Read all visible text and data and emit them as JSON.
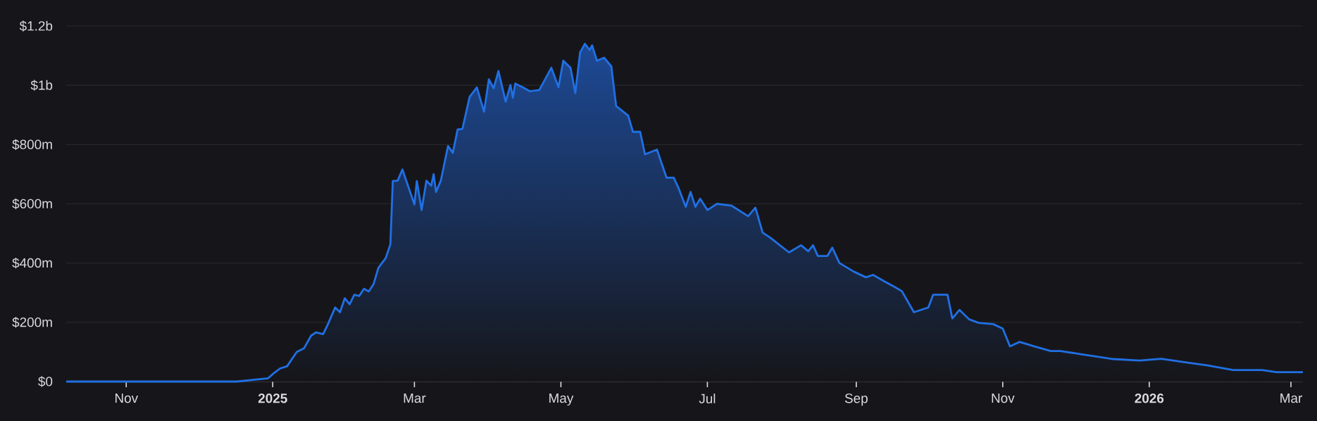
{
  "chart_data": {
    "type": "area",
    "color": "#2170e4",
    "grid": "y",
    "xlim": [
      "2024-10-07",
      "2026-03-06"
    ],
    "xticks": [
      {
        "value": "2024-11-01",
        "label": "Nov"
      },
      {
        "value": "2025-01-01",
        "label": "2025"
      },
      {
        "value": "2025-03-01",
        "label": "Mar"
      },
      {
        "value": "2025-05-01",
        "label": "May"
      },
      {
        "value": "2025-07-01",
        "label": "Jul"
      },
      {
        "value": "2025-09-01",
        "label": "Sep"
      },
      {
        "value": "2025-11-01",
        "label": "Nov"
      },
      {
        "value": "2026-01-01",
        "label": "2026"
      },
      {
        "value": "2026-03-01",
        "label": "Mar"
      }
    ],
    "ylim": [
      0,
      1200000000
    ],
    "yticks": [
      {
        "value": 0,
        "label": "$0"
      },
      {
        "value": 200000000,
        "label": "$200m"
      },
      {
        "value": 400000000,
        "label": "$400m"
      },
      {
        "value": 600000000,
        "label": "$600m"
      },
      {
        "value": 800000000,
        "label": "$800m"
      },
      {
        "value": 1000000000,
        "label": "$1b"
      },
      {
        "value": 1200000000,
        "label": "$1.2b"
      }
    ],
    "x": [
      "2024-10-07",
      "2024-12-17",
      "2024-12-30",
      "2025-01-01",
      "2025-01-04",
      "2025-01-07",
      "2025-01-11",
      "2025-01-14",
      "2025-01-17",
      "2025-01-19",
      "2025-01-22",
      "2025-01-24",
      "2025-01-27",
      "2025-01-29",
      "2025-01-31",
      "2025-02-02",
      "2025-02-04",
      "2025-02-06",
      "2025-02-08",
      "2025-02-10",
      "2025-02-12",
      "2025-02-14",
      "2025-02-17",
      "2025-02-19",
      "2025-02-20",
      "2025-02-22",
      "2025-02-24",
      "2025-03-01",
      "2025-03-02",
      "2025-03-04",
      "2025-03-06",
      "2025-03-08",
      "2025-03-09",
      "2025-03-10",
      "2025-03-12",
      "2025-03-15",
      "2025-03-17",
      "2025-03-19",
      "2025-03-21",
      "2025-03-24",
      "2025-03-27",
      "2025-03-30",
      "2025-04-01",
      "2025-04-03",
      "2025-04-05",
      "2025-04-08",
      "2025-04-10",
      "2025-04-11",
      "2025-04-12",
      "2025-04-15",
      "2025-04-18",
      "2025-04-22",
      "2025-04-27",
      "2025-04-30",
      "2025-05-02",
      "2025-05-05",
      "2025-05-07",
      "2025-05-09",
      "2025-05-11",
      "2025-05-13",
      "2025-05-14",
      "2025-05-16",
      "2025-05-19",
      "2025-05-22",
      "2025-05-24",
      "2025-05-29",
      "2025-05-31",
      "2025-06-03",
      "2025-06-05",
      "2025-06-10",
      "2025-06-14",
      "2025-06-17",
      "2025-06-19",
      "2025-06-22",
      "2025-06-24",
      "2025-06-26",
      "2025-06-28",
      "2025-07-01",
      "2025-07-05",
      "2025-07-11",
      "2025-07-18",
      "2025-07-21",
      "2025-07-24",
      "2025-07-27",
      "2025-07-30",
      "2025-08-04",
      "2025-08-09",
      "2025-08-12",
      "2025-08-14",
      "2025-08-16",
      "2025-08-20",
      "2025-08-22",
      "2025-08-25",
      "2025-08-31",
      "2025-09-05",
      "2025-09-08",
      "2025-09-13",
      "2025-09-16",
      "2025-09-20",
      "2025-09-25",
      "2025-10-01",
      "2025-10-03",
      "2025-10-09",
      "2025-10-11",
      "2025-10-14",
      "2025-10-18",
      "2025-10-22",
      "2025-10-28",
      "2025-11-01",
      "2025-11-04",
      "2025-11-08",
      "2025-11-14",
      "2025-11-21",
      "2025-11-25",
      "2025-12-04",
      "2025-12-17",
      "2025-12-28",
      "2026-01-06",
      "2026-01-16",
      "2026-01-25",
      "2026-02-05",
      "2026-02-17",
      "2026-02-23",
      "2026-03-06"
    ],
    "values": [
      0,
      0,
      11000000,
      25000000,
      44000000,
      52000000,
      100000000,
      112000000,
      155000000,
      166000000,
      160000000,
      194000000,
      250000000,
      234000000,
      281000000,
      261000000,
      293000000,
      289000000,
      313000000,
      304000000,
      329000000,
      384000000,
      416000000,
      463000000,
      677000000,
      678000000,
      716000000,
      598000000,
      677000000,
      579000000,
      678000000,
      661000000,
      700000000,
      640000000,
      678000000,
      795000000,
      772000000,
      851000000,
      853000000,
      961000000,
      993000000,
      911000000,
      1020000000,
      990000000,
      1048000000,
      945000000,
      1001000000,
      958000000,
      1006000000,
      994000000,
      980000000,
      984000000,
      1059000000,
      994000000,
      1083000000,
      1059000000,
      974000000,
      1111000000,
      1140000000,
      1119000000,
      1135000000,
      1083000000,
      1093000000,
      1064000000,
      930000000,
      898000000,
      843000000,
      843000000,
      767000000,
      783000000,
      688000000,
      688000000,
      653000000,
      590000000,
      640000000,
      590000000,
      617000000,
      579000000,
      600000000,
      594000000,
      558000000,
      587000000,
      503000000,
      487000000,
      468000000,
      436000000,
      460000000,
      440000000,
      460000000,
      424000000,
      424000000,
      452000000,
      400000000,
      371000000,
      352000000,
      360000000,
      337000000,
      324000000,
      305000000,
      234000000,
      250000000,
      293000000,
      293000000,
      213000000,
      242000000,
      210000000,
      198000000,
      194000000,
      179000000,
      119000000,
      134000000,
      119000000,
      103000000,
      103000000,
      92000000,
      76000000,
      71000000,
      77000000,
      65000000,
      55000000,
      39000000,
      39000000,
      32000000,
      32000000
    ]
  }
}
